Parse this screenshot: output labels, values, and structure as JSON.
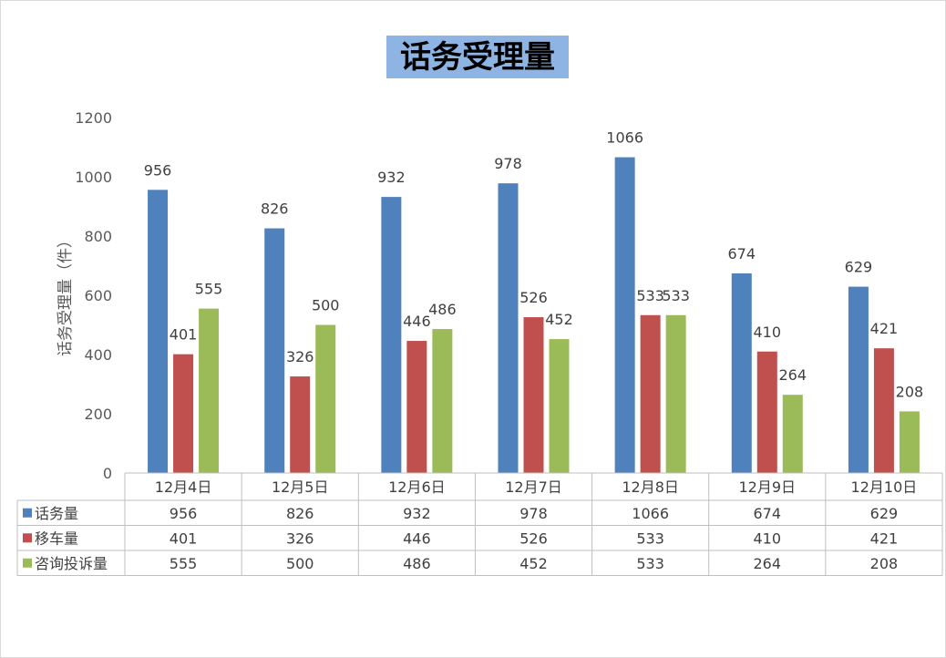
{
  "chart_data": {
    "type": "bar",
    "title": "话务受理量",
    "ylabel": "话务受理量（件）",
    "xlabel": "",
    "categories": [
      "12月4日",
      "12月5日",
      "12月6日",
      "12月7日",
      "12月8日",
      "12月9日",
      "12月10日"
    ],
    "series": [
      {
        "name": "话务量",
        "color": "#4f81bd",
        "values": [
          956,
          826,
          932,
          978,
          1066,
          674,
          629
        ]
      },
      {
        "name": "移车量",
        "color": "#c0504d",
        "values": [
          401,
          326,
          446,
          526,
          533,
          410,
          421
        ]
      },
      {
        "name": "咨询投诉量",
        "color": "#9bbb59",
        "values": [
          555,
          500,
          486,
          452,
          533,
          264,
          208
        ]
      }
    ],
    "ylim": [
      0,
      1200
    ],
    "yticks": [
      0,
      200,
      400,
      600,
      800,
      1000,
      1200
    ],
    "grid": false,
    "legend": "data-table"
  }
}
